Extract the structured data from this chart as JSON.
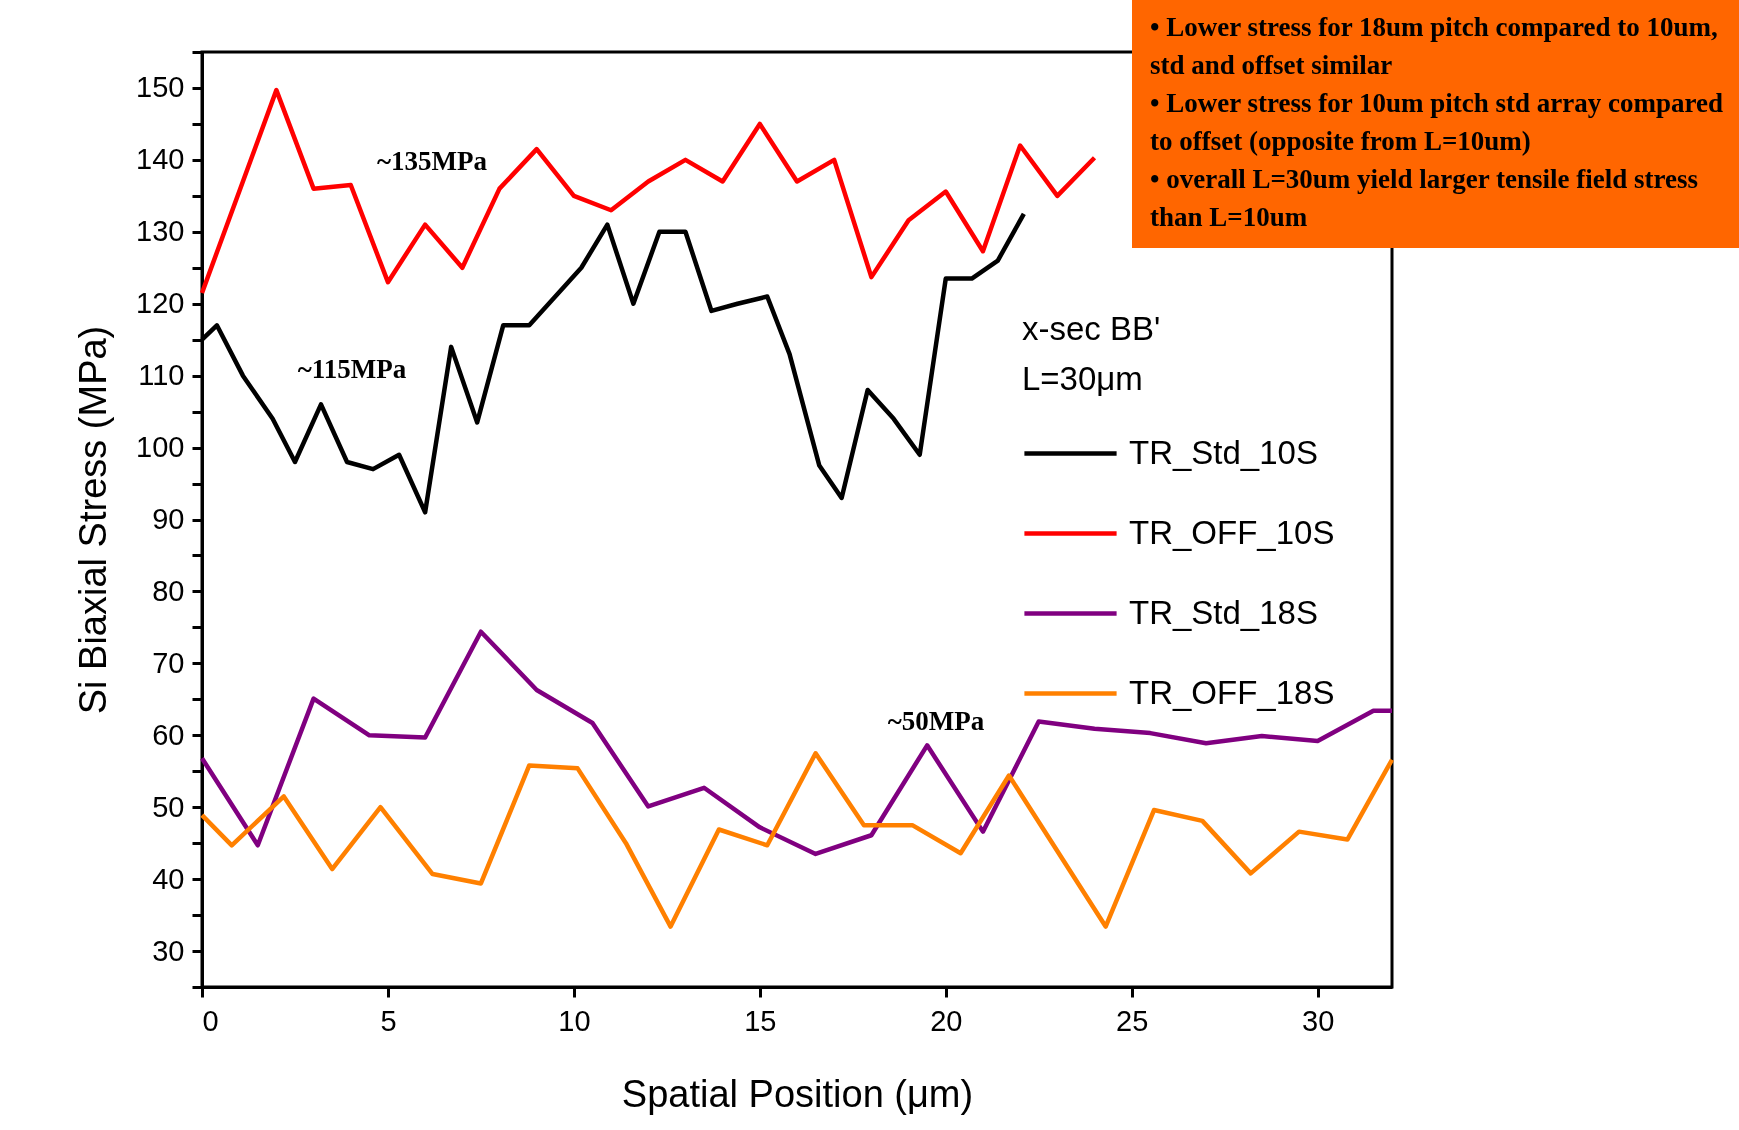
{
  "chart_data": {
    "type": "line",
    "xlabel": "Spatial Position (μm)",
    "ylabel": "Si Biaxial Stress (MPa)",
    "legend_title": "x-sec BB'\nL=30μm",
    "legend": "right",
    "grid": false,
    "line_style": "solid",
    "marker": "none",
    "xlim": [
      0,
      32
    ],
    "ylim": [
      25,
      155
    ],
    "xticks": [
      0,
      5,
      10,
      15,
      20,
      25,
      30
    ],
    "yticks": [
      {
        "value": 25,
        "label": null
      },
      30,
      {
        "value": 35,
        "label": null
      },
      40,
      {
        "value": 45,
        "label": null
      },
      50,
      {
        "value": 55,
        "label": null
      },
      60,
      {
        "value": 65,
        "label": null
      },
      70,
      {
        "value": 75,
        "label": null
      },
      80,
      {
        "value": 85,
        "label": null
      },
      90,
      {
        "value": 95,
        "label": null
      },
      100,
      {
        "value": 105,
        "label": null
      },
      110,
      {
        "value": 115,
        "label": null
      },
      120,
      {
        "value": 125,
        "label": null
      },
      130,
      {
        "value": 135,
        "label": null
      },
      140,
      {
        "value": 145,
        "label": null
      },
      150,
      {
        "value": 155,
        "label": null
      }
    ],
    "series": [
      {
        "name": "TR_Std_10S",
        "color": "#000000",
        "x": [
          0,
          0.4,
          1.1,
          1.9,
          2.5,
          3.2,
          3.9,
          4.6,
          5.3,
          6.0,
          6.7,
          7.4,
          8.1,
          8.8,
          9.5,
          10.2,
          10.9,
          11.6,
          12.3,
          13.0,
          13.7,
          14.4,
          15.2,
          15.8,
          16.6,
          17.2,
          17.9,
          18.6,
          19.3,
          20.0,
          20.7,
          21.4,
          22.1
        ],
        "values": [
          115,
          117,
          110,
          104,
          98,
          106,
          98,
          97,
          99,
          91,
          114,
          103.5,
          117,
          117,
          121,
          125,
          131,
          120,
          130,
          130,
          119,
          120,
          121,
          113,
          97.5,
          93,
          108,
          104,
          99,
          123.5,
          123.5,
          126,
          132.5
        ]
      },
      {
        "name": "TR_OFF_10S",
        "color": "#ff0000",
        "x": [
          0,
          1.1,
          2.0,
          3.0,
          4.0,
          5.0,
          6.0,
          7.0,
          8.0,
          9.0,
          10.0,
          11.0,
          12.0,
          13.0,
          14.0,
          15.0,
          16.0,
          17.0,
          18.0,
          19.0,
          20.0,
          21.0,
          22.0,
          23.0,
          24.0
        ],
        "values": [
          121.5,
          137,
          149.7,
          136,
          136.5,
          123,
          131,
          125,
          136,
          141.5,
          135,
          133,
          137,
          140,
          137,
          145,
          137,
          140,
          123.7,
          131.6,
          135.6,
          127.3,
          142,
          135,
          140.3
        ]
      },
      {
        "name": "TR_Std_18S",
        "color": "#800080",
        "x": [
          0,
          1.5,
          3.0,
          4.5,
          6.0,
          7.5,
          9.0,
          10.5,
          12.0,
          13.5,
          15.0,
          16.5,
          18.0,
          19.5,
          21.0,
          22.5,
          24.0,
          25.5,
          27.0,
          28.5,
          30.0,
          31.5,
          32.0
        ],
        "values": [
          56.8,
          44.7,
          65.1,
          60,
          59.7,
          74.4,
          66.3,
          61.7,
          50.1,
          52.7,
          47.2,
          43.5,
          46.1,
          58.6,
          46.6,
          61.9,
          60.9,
          60.3,
          58.9,
          59.9,
          59.2,
          63.4,
          63.4
        ]
      },
      {
        "name": "TR_OFF_18S",
        "color": "#ff8000",
        "x": [
          0,
          0.8,
          2.2,
          3.5,
          4.8,
          6.2,
          7.5,
          8.8,
          10.1,
          11.4,
          12.6,
          13.9,
          15.2,
          16.5,
          17.8,
          19.1,
          20.4,
          21.7,
          24.3,
          25.6,
          26.9,
          28.2,
          29.5,
          30.8,
          32.0
        ],
        "values": [
          48.9,
          44.7,
          51.5,
          41.4,
          50,
          40.7,
          39.4,
          55.8,
          55.4,
          45,
          33.4,
          46.9,
          44.7,
          57.5,
          47.5,
          47.5,
          43.6,
          54.4,
          33.4,
          49.6,
          48.1,
          40.8,
          46.6,
          45.5,
          56.6
        ]
      }
    ],
    "annotations": [
      "~135MPa",
      "~115MPa",
      "~50MPa",
      "• Lower stress for 18um pitch compared to 10um, std and offset similar",
      "• Lower stress for 10um pitch std array compared to offset (opposite from L=10um)",
      "• overall L=30um yield larger tensile field stress than L=10um"
    ]
  }
}
